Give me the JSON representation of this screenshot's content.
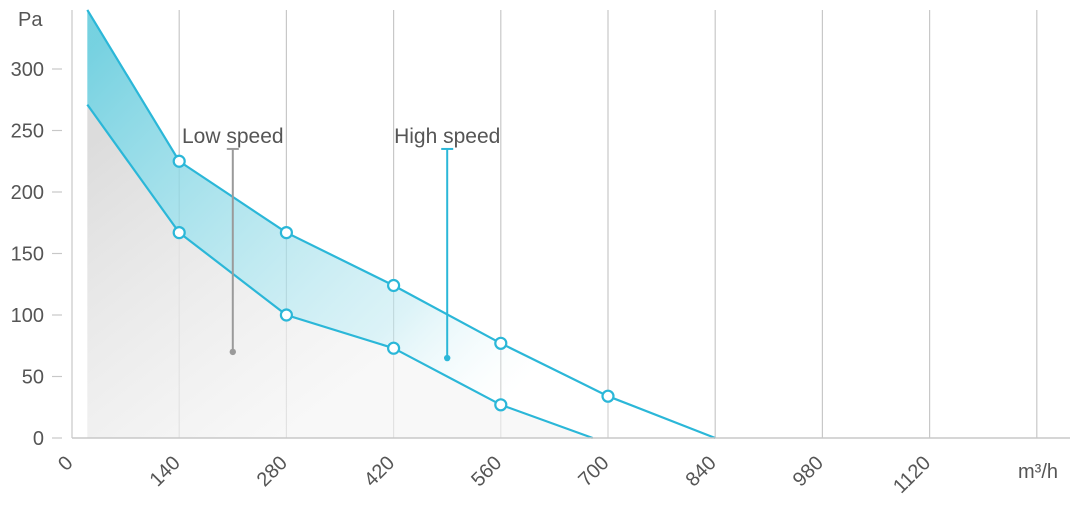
{
  "chart_data": {
    "type": "area",
    "ylabel": "Pa",
    "xlabel": "m³/h",
    "xlim": [
      0,
      1260
    ],
    "ylim": [
      0,
      350
    ],
    "x_ticks": [
      "0",
      "140",
      "280",
      "420",
      "560",
      "700",
      "840",
      "980",
      "1120"
    ],
    "y_ticks": [
      "0",
      "50",
      "100",
      "150",
      "200",
      "250",
      "300"
    ],
    "grid": "vertical",
    "series": [
      {
        "name": "High speed",
        "color": "#2bb7d8",
        "x": [
          20,
          140,
          280,
          420,
          560,
          700,
          840
        ],
        "y": [
          348,
          225,
          167,
          124,
          77,
          34,
          0
        ]
      },
      {
        "name": "Low speed",
        "color": "#2bb7d8",
        "x": [
          20,
          140,
          280,
          420,
          560,
          680
        ],
        "y": [
          271,
          167,
          100,
          73,
          27,
          0
        ]
      }
    ],
    "annotations": [
      {
        "text": "Low speed",
        "x": 210,
        "y_top": 235,
        "y_bottom": 70,
        "color": "#9a9a9a"
      },
      {
        "text": "High speed",
        "x": 490,
        "y_top": 235,
        "y_bottom": 65,
        "color": "#2bb7d8"
      }
    ],
    "colors": {
      "line": "#2bb7d8",
      "band": "#6fcfdf",
      "under": "#e3e3e3",
      "grid": "#c8c8c8",
      "marker_fill": "#ffffff",
      "low_anno": "#9a9a9a"
    }
  }
}
